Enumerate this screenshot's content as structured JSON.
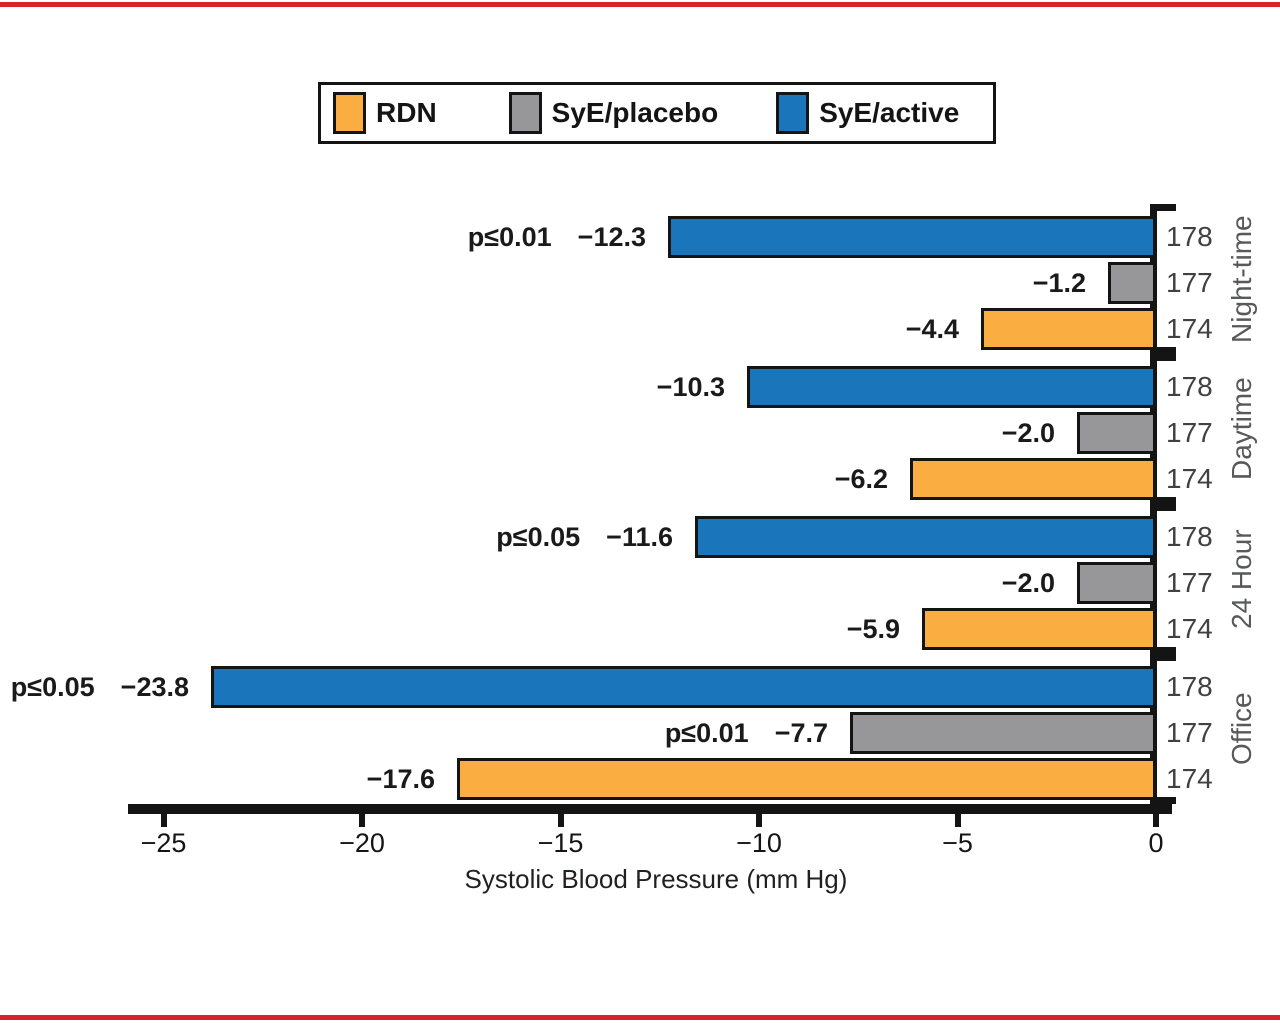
{
  "colors": {
    "red_rule": "#D8232F",
    "axis_black": "#141414",
    "n_label_gray": "#414042",
    "group_label_gray": "#58595B",
    "rdn_orange": "#FAAE42",
    "placebo_gray": "#97979A",
    "active_blue": "#1B75BB"
  },
  "legend": {
    "items": [
      {
        "label": "RDN",
        "color": "#FAAE42"
      },
      {
        "label": "SyE/placebo",
        "color": "#97979A"
      },
      {
        "label": "SyE/active",
        "color": "#1B75BB"
      }
    ]
  },
  "chart_data": {
    "type": "bar",
    "orientation": "horizontal",
    "title": "",
    "xlabel": "Systolic Blood Pressure (mm Hg)",
    "xlim": [
      -25,
      0
    ],
    "grid": false,
    "legend_position": "top",
    "series_names_top_to_bottom": [
      "SyE/active",
      "SyE/placebo",
      "RDN"
    ],
    "xticks": [
      {
        "value": -25,
        "label": "−25"
      },
      {
        "value": -20,
        "label": "−20"
      },
      {
        "value": -15,
        "label": "−15"
      },
      {
        "value": -10,
        "label": "−10"
      },
      {
        "value": -5,
        "label": "−5"
      },
      {
        "value": 0,
        "label": "0"
      }
    ],
    "groups": [
      {
        "label": "Night-time",
        "bars": [
          {
            "series": "SyE/active",
            "value": -12.3,
            "value_label": "−12.3",
            "p_label": "p≤0.01",
            "n": 178
          },
          {
            "series": "SyE/placebo",
            "value": -1.2,
            "value_label": "−1.2",
            "p_label": null,
            "n": 177
          },
          {
            "series": "RDN",
            "value": -4.4,
            "value_label": "−4.4",
            "p_label": null,
            "n": 174
          }
        ]
      },
      {
        "label": "Daytime",
        "bars": [
          {
            "series": "SyE/active",
            "value": -10.3,
            "value_label": "−10.3",
            "p_label": null,
            "n": 178
          },
          {
            "series": "SyE/placebo",
            "value": -2.0,
            "value_label": "−2.0",
            "p_label": null,
            "n": 177
          },
          {
            "series": "RDN",
            "value": -6.2,
            "value_label": "−6.2",
            "p_label": null,
            "n": 174
          }
        ]
      },
      {
        "label": "24 Hour",
        "bars": [
          {
            "series": "SyE/active",
            "value": -11.6,
            "value_label": "−11.6",
            "p_label": "p≤0.05",
            "n": 178
          },
          {
            "series": "SyE/placebo",
            "value": -2.0,
            "value_label": "−2.0",
            "p_label": null,
            "n": 177
          },
          {
            "series": "RDN",
            "value": -5.9,
            "value_label": "−5.9",
            "p_label": null,
            "n": 174
          }
        ]
      },
      {
        "label": "Office",
        "bars": [
          {
            "series": "SyE/active",
            "value": -23.8,
            "value_label": "−23.8",
            "p_label": "p≤0.05",
            "n": 178
          },
          {
            "series": "SyE/placebo",
            "value": -7.7,
            "value_label": "−7.7",
            "p_label": "p≤0.01",
            "n": 177
          },
          {
            "series": "RDN",
            "value": -17.6,
            "value_label": "−17.6",
            "p_label": null,
            "n": 174
          }
        ]
      }
    ]
  }
}
